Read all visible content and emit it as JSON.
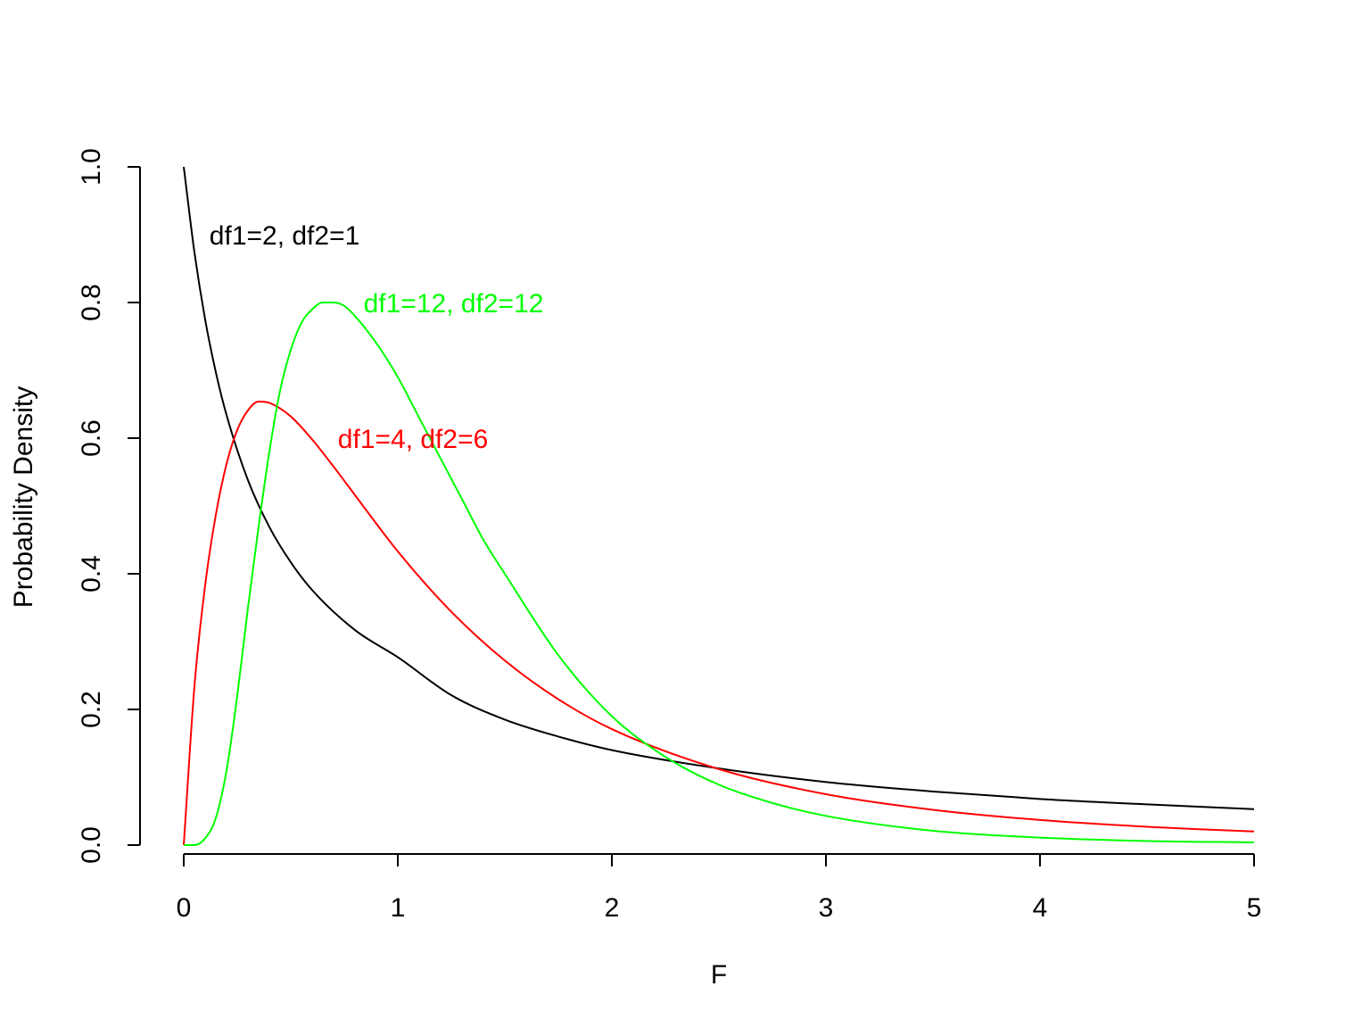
{
  "chart_data": {
    "type": "line",
    "title": "",
    "xlabel": "F",
    "ylabel": "Probability Density",
    "xlim": [
      0,
      5
    ],
    "ylim": [
      0,
      1
    ],
    "x_ticks": [
      0,
      1,
      2,
      3,
      4,
      5
    ],
    "x_tick_labels": [
      "0",
      "1",
      "2",
      "3",
      "4",
      "5"
    ],
    "y_ticks": [
      0,
      0.2,
      0.4,
      0.6,
      0.8,
      1.0
    ],
    "y_tick_labels": [
      "0.0",
      "0.2",
      "0.4",
      "0.6",
      "0.8",
      "1.0"
    ],
    "grid": false,
    "legend": "none",
    "series": [
      {
        "color": "#000000",
        "x": [
          0,
          0.05,
          0.1,
          0.15,
          0.2,
          0.3,
          0.4,
          0.5,
          0.6,
          0.8,
          1.0,
          1.25,
          1.5,
          1.75,
          2.0,
          2.5,
          3.0,
          3.5,
          4.0,
          4.5,
          5.0
        ],
        "values": [
          1.0,
          0.874,
          0.775,
          0.697,
          0.634,
          0.538,
          0.469,
          0.417,
          0.376,
          0.317,
          0.277,
          0.221,
          0.185,
          0.16,
          0.14,
          0.113,
          0.093,
          0.079,
          0.068,
          0.06,
          0.053
        ]
      },
      {
        "color": "#ff0000",
        "x": [
          0,
          0.05,
          0.1,
          0.15,
          0.2,
          0.25,
          0.3,
          0.35,
          0.4,
          0.5,
          0.6,
          0.7,
          0.8,
          1.0,
          1.25,
          1.5,
          1.75,
          2.0,
          2.5,
          3.0,
          3.5,
          4.0,
          4.5,
          5.0
        ],
        "values": [
          0,
          0.234,
          0.383,
          0.487,
          0.562,
          0.612,
          0.641,
          0.654,
          0.652,
          0.632,
          0.598,
          0.558,
          0.516,
          0.433,
          0.344,
          0.272,
          0.215,
          0.171,
          0.112,
          0.075,
          0.052,
          0.037,
          0.027,
          0.02
        ]
      },
      {
        "color": "#00ff00",
        "x": [
          0,
          0.05,
          0.1,
          0.15,
          0.2,
          0.25,
          0.3,
          0.35,
          0.4,
          0.45,
          0.5,
          0.55,
          0.6,
          0.65,
          0.7,
          0.75,
          0.8,
          0.9,
          1.0,
          1.1,
          1.2,
          1.3,
          1.4,
          1.5,
          1.75,
          2.0,
          2.25,
          2.5,
          2.75,
          3.0,
          3.5,
          4.0,
          4.5,
          5.0
        ],
        "values": [
          0,
          0,
          0.01,
          0.04,
          0.11,
          0.22,
          0.35,
          0.47,
          0.58,
          0.67,
          0.73,
          0.77,
          0.79,
          0.8,
          0.8,
          0.795,
          0.78,
          0.74,
          0.69,
          0.63,
          0.57,
          0.51,
          0.45,
          0.4,
          0.28,
          0.19,
          0.13,
          0.089,
          0.062,
          0.043,
          0.021,
          0.011,
          0.006,
          0.004
        ]
      }
    ],
    "annotations": [
      {
        "text": "df1=2, df2=1",
        "x": 0.12,
        "y": 0.9,
        "color": "#000000"
      },
      {
        "text": "df1=12, df2=12",
        "x": 0.84,
        "y": 0.8,
        "color": "#00ff00"
      },
      {
        "text": "df1=4, df2=6",
        "x": 0.72,
        "y": 0.6,
        "color": "#ff0000"
      }
    ]
  }
}
